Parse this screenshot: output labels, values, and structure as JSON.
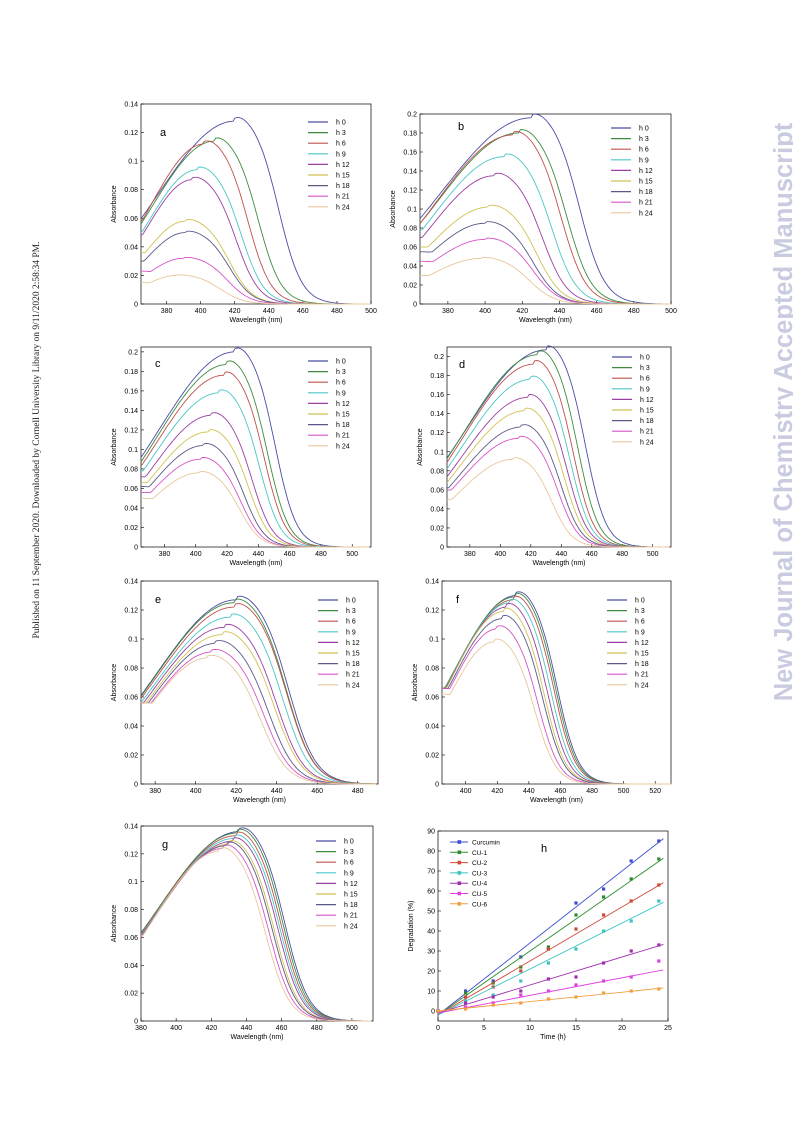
{
  "side_note_left": "Published on 11 September 2020. Downloaded by Cornell University Library on 9/11/2020 2:58:34 PM.",
  "side_note_right": "New Journal of Chemistry Accepted Manuscript",
  "colors": {
    "h0": "#4b4ea6",
    "h3": "#3e8b3e",
    "h6": "#c0504d",
    "h9": "#4bc6c6",
    "h12": "#9b3fa3",
    "h15": "#d0c253",
    "h18": "#5a5a8a",
    "h21": "#d655c8",
    "h24": "#e8c79b"
  },
  "chart_data": [
    {
      "panel": "a",
      "type": "line",
      "xlabel": "Wavelength (nm)",
      "ylabel": "Absorbance",
      "xlim": [
        365,
        500
      ],
      "ylim": [
        0,
        0.14
      ],
      "xticks": [
        "380",
        "400",
        "420",
        "440",
        "460",
        "480",
        "500"
      ],
      "yticks": [
        "0",
        "0.02",
        "0.04",
        "0.06",
        "0.08",
        "0.1",
        "0.12",
        "0.14"
      ],
      "legend_position": "top-right",
      "series": [
        {
          "name": "h 0",
          "peak": 420,
          "peak_value": 0.128,
          "start_value": 0.045
        },
        {
          "name": "h 3",
          "peak": 408,
          "peak_value": 0.114,
          "start_value": 0.055
        },
        {
          "name": "h 6",
          "peak": 402,
          "peak_value": 0.112,
          "start_value": 0.058
        },
        {
          "name": "h 9",
          "peak": 398,
          "peak_value": 0.094,
          "start_value": 0.05
        },
        {
          "name": "h 12",
          "peak": 395,
          "peak_value": 0.087,
          "start_value": 0.048
        },
        {
          "name": "h 15",
          "peak": 391,
          "peak_value": 0.058,
          "start_value": 0.036
        },
        {
          "name": "h 18",
          "peak": 391,
          "peak_value": 0.05,
          "start_value": 0.03
        },
        {
          "name": "h 21",
          "peak": 390,
          "peak_value": 0.032,
          "start_value": 0.023
        },
        {
          "name": "h 24",
          "peak": 386,
          "peak_value": 0.02,
          "start_value": 0.015
        }
      ]
    },
    {
      "panel": "b",
      "type": "line",
      "xlabel": "Wavelength (nm)",
      "ylabel": "Absorbance",
      "xlim": [
        365,
        500
      ],
      "ylim": [
        0,
        0.2
      ],
      "xticks": [
        "380",
        "400",
        "420",
        "440",
        "460",
        "480",
        "500"
      ],
      "yticks": [
        "0",
        "0.02",
        "0.04",
        "0.06",
        "0.08",
        "0.1",
        "0.12",
        "0.14",
        "0.16",
        "0.18",
        "0.2"
      ],
      "legend_position": "top-right",
      "series": [
        {
          "name": "h 0",
          "peak": 425,
          "peak_value": 0.196,
          "start_value": 0.08
        },
        {
          "name": "h 3",
          "peak": 418,
          "peak_value": 0.18,
          "start_value": 0.085
        },
        {
          "name": "h 6",
          "peak": 415,
          "peak_value": 0.178,
          "start_value": 0.082
        },
        {
          "name": "h 9",
          "peak": 410,
          "peak_value": 0.155,
          "start_value": 0.078
        },
        {
          "name": "h 12",
          "peak": 405,
          "peak_value": 0.135,
          "start_value": 0.07
        },
        {
          "name": "h 15",
          "peak": 402,
          "peak_value": 0.102,
          "start_value": 0.06
        },
        {
          "name": "h 18",
          "peak": 400,
          "peak_value": 0.085,
          "start_value": 0.055
        },
        {
          "name": "h 21",
          "peak": 400,
          "peak_value": 0.068,
          "start_value": 0.045
        },
        {
          "name": "h 24",
          "peak": 398,
          "peak_value": 0.048,
          "start_value": 0.03
        }
      ]
    },
    {
      "panel": "c",
      "type": "line",
      "xlabel": "Wavelength (nm)",
      "ylabel": "Absorbance",
      "xlim": [
        365,
        512
      ],
      "ylim": [
        0,
        0.205
      ],
      "xticks": [
        "380",
        "400",
        "420",
        "440",
        "460",
        "480",
        "500"
      ],
      "yticks": [
        "0",
        "0.02",
        "0.04",
        "0.06",
        "0.08",
        "0.1",
        "0.12",
        "0.14",
        "0.16",
        "0.18",
        "0.2"
      ],
      "legend_position": "top-right",
      "series": [
        {
          "name": "h 0",
          "peak": 425,
          "peak_value": 0.2,
          "start_value": 0.087
        },
        {
          "name": "h 3",
          "peak": 420,
          "peak_value": 0.187,
          "start_value": 0.085
        },
        {
          "name": "h 6",
          "peak": 418,
          "peak_value": 0.176,
          "start_value": 0.083
        },
        {
          "name": "h 9",
          "peak": 415,
          "peak_value": 0.158,
          "start_value": 0.078
        },
        {
          "name": "h 12",
          "peak": 410,
          "peak_value": 0.135,
          "start_value": 0.072
        },
        {
          "name": "h 15",
          "peak": 408,
          "peak_value": 0.118,
          "start_value": 0.066
        },
        {
          "name": "h 18",
          "peak": 405,
          "peak_value": 0.104,
          "start_value": 0.062
        },
        {
          "name": "h 21",
          "peak": 403,
          "peak_value": 0.09,
          "start_value": 0.056
        },
        {
          "name": "h 24",
          "peak": 402,
          "peak_value": 0.076,
          "start_value": 0.05
        }
      ]
    },
    {
      "panel": "d",
      "type": "line",
      "xlabel": "Wavelength (nm)",
      "ylabel": "Absorbance",
      "xlim": [
        365,
        512
      ],
      "ylim": [
        0,
        0.21
      ],
      "xticks": [
        "380",
        "400",
        "420",
        "440",
        "460",
        "480",
        "500"
      ],
      "yticks": [
        "0",
        "0.02",
        "0.04",
        "0.06",
        "0.08",
        "0.1",
        "0.12",
        "0.14",
        "0.16",
        "0.18",
        "0.2"
      ],
      "legend_position": "top-right",
      "series": [
        {
          "name": "h 0",
          "peak": 430,
          "peak_value": 0.207,
          "start_value": 0.07
        },
        {
          "name": "h 3",
          "peak": 425,
          "peak_value": 0.202,
          "start_value": 0.072
        },
        {
          "name": "h 6",
          "peak": 422,
          "peak_value": 0.192,
          "start_value": 0.07
        },
        {
          "name": "h 9",
          "peak": 420,
          "peak_value": 0.176,
          "start_value": 0.068
        },
        {
          "name": "h 12",
          "peak": 418,
          "peak_value": 0.157,
          "start_value": 0.066
        },
        {
          "name": "h 15",
          "peak": 416,
          "peak_value": 0.143,
          "start_value": 0.064
        },
        {
          "name": "h 18",
          "peak": 414,
          "peak_value": 0.126,
          "start_value": 0.062
        },
        {
          "name": "h 21",
          "peak": 412,
          "peak_value": 0.114,
          "start_value": 0.06
        },
        {
          "name": "h 24",
          "peak": 408,
          "peak_value": 0.092,
          "start_value": 0.05
        }
      ]
    },
    {
      "panel": "e",
      "type": "line",
      "xlabel": "Wavelength (nm)",
      "ylabel": "Absorbance",
      "xlim": [
        373,
        490
      ],
      "ylim": [
        0,
        0.14
      ],
      "xticks": [
        "380",
        "400",
        "420",
        "440",
        "460",
        "480"
      ],
      "yticks": [
        "0",
        "0.02",
        "0.04",
        "0.06",
        "0.08",
        "0.1",
        "0.12",
        "0.14"
      ],
      "legend_position": "top-right",
      "series": [
        {
          "name": "h 0",
          "peak": 420,
          "peak_value": 0.127,
          "start_value": 0.056
        },
        {
          "name": "h 3",
          "peak": 419,
          "peak_value": 0.125,
          "start_value": 0.056
        },
        {
          "name": "h 6",
          "peak": 419,
          "peak_value": 0.122,
          "start_value": 0.056
        },
        {
          "name": "h 9",
          "peak": 417,
          "peak_value": 0.115,
          "start_value": 0.056
        },
        {
          "name": "h 12",
          "peak": 414,
          "peak_value": 0.108,
          "start_value": 0.056
        },
        {
          "name": "h 15",
          "peak": 413,
          "peak_value": 0.103,
          "start_value": 0.056
        },
        {
          "name": "h 18",
          "peak": 410,
          "peak_value": 0.097,
          "start_value": 0.056
        },
        {
          "name": "h 21",
          "peak": 408,
          "peak_value": 0.091,
          "start_value": 0.056
        },
        {
          "name": "h 24",
          "peak": 406,
          "peak_value": 0.087,
          "start_value": 0.056
        }
      ]
    },
    {
      "panel": "f",
      "type": "line",
      "xlabel": "Wavelength (nm)",
      "ylabel": "Absorbance",
      "xlim": [
        385,
        530
      ],
      "ylim": [
        0,
        0.14
      ],
      "xticks": [
        "400",
        "420",
        "440",
        "460",
        "480",
        "500",
        "520"
      ],
      "yticks": [
        "0",
        "0.02",
        "0.04",
        "0.06",
        "0.08",
        "0.1",
        "0.12",
        "0.14"
      ],
      "legend_position": "top-right",
      "series": [
        {
          "name": "h 0",
          "peak": 432,
          "peak_value": 0.13,
          "start_value": 0.066
        },
        {
          "name": "h 3",
          "peak": 431,
          "peak_value": 0.129,
          "start_value": 0.066
        },
        {
          "name": "h 6",
          "peak": 430,
          "peak_value": 0.127,
          "start_value": 0.066
        },
        {
          "name": "h 9",
          "peak": 428,
          "peak_value": 0.125,
          "start_value": 0.066
        },
        {
          "name": "h 12",
          "peak": 426,
          "peak_value": 0.122,
          "start_value": 0.066
        },
        {
          "name": "h 15",
          "peak": 424,
          "peak_value": 0.119,
          "start_value": 0.066
        },
        {
          "name": "h 18",
          "peak": 423,
          "peak_value": 0.114,
          "start_value": 0.066
        },
        {
          "name": "h 21",
          "peak": 420,
          "peak_value": 0.107,
          "start_value": 0.066
        },
        {
          "name": "h 24",
          "peak": 418,
          "peak_value": 0.098,
          "start_value": 0.062
        }
      ]
    },
    {
      "panel": "g",
      "type": "line",
      "xlabel": "Wavelength (nm)",
      "ylabel": "Absorbance",
      "xlim": [
        380,
        512
      ],
      "ylim": [
        0,
        0.14
      ],
      "xticks": [
        "380",
        "400",
        "420",
        "440",
        "460",
        "480",
        "500"
      ],
      "yticks": [
        "0",
        "0.02",
        "0.04",
        "0.06",
        "0.08",
        "0.1",
        "0.12",
        "0.14"
      ],
      "legend_position": "top-right",
      "series": [
        {
          "name": "h 0",
          "peak": 436,
          "peak_value": 0.136,
          "start_value": 0.055
        },
        {
          "name": "h 3",
          "peak": 435,
          "peak_value": 0.135,
          "start_value": 0.055
        },
        {
          "name": "h 6",
          "peak": 434,
          "peak_value": 0.133,
          "start_value": 0.056
        },
        {
          "name": "h 9",
          "peak": 433,
          "peak_value": 0.131,
          "start_value": 0.056
        },
        {
          "name": "h 12",
          "peak": 432,
          "peak_value": 0.129,
          "start_value": 0.057
        },
        {
          "name": "h 15",
          "peak": 430,
          "peak_value": 0.127,
          "start_value": 0.058
        },
        {
          "name": "h 18",
          "peak": 429,
          "peak_value": 0.126,
          "start_value": 0.059
        },
        {
          "name": "h 21",
          "peak": 427,
          "peak_value": 0.124,
          "start_value": 0.06
        },
        {
          "name": "h 24",
          "peak": 425,
          "peak_value": 0.122,
          "start_value": 0.061
        }
      ]
    },
    {
      "panel": "h",
      "type": "scatter",
      "xlabel": "Time (h)",
      "ylabel": "Degradation (%)",
      "xlim": [
        0,
        25
      ],
      "ylim": [
        -5,
        90
      ],
      "xticks": [
        "0",
        "5",
        "10",
        "15",
        "20",
        "25"
      ],
      "yticks": [
        "0",
        "10",
        "20",
        "30",
        "40",
        "50",
        "60",
        "70",
        "80",
        "90"
      ],
      "legend_position": "top-left",
      "x": [
        0,
        3,
        6,
        9,
        12,
        15,
        18,
        21,
        24
      ],
      "series": [
        {
          "name": "Curcumin",
          "color": "#3d4fd0",
          "values": [
            0,
            10,
            15,
            27,
            31,
            54,
            61,
            75,
            85
          ],
          "fit": [
            -2,
            3.6
          ]
        },
        {
          "name": "CU-1",
          "color": "#2e8b2e",
          "values": [
            0,
            9,
            14,
            22,
            32,
            48,
            57,
            66,
            76
          ],
          "fit": [
            -2,
            3.2
          ]
        },
        {
          "name": "CU-2",
          "color": "#d04a3a",
          "values": [
            0,
            7,
            12,
            20,
            31,
            41,
            48,
            55,
            63
          ],
          "fit": [
            -2,
            2.7
          ]
        },
        {
          "name": "CU-3",
          "color": "#3cc4c0",
          "values": [
            0,
            5,
            8,
            15,
            24,
            31,
            40,
            45,
            55
          ],
          "fit": [
            -2,
            2.3
          ]
        },
        {
          "name": "CU-4",
          "color": "#a030b0",
          "values": [
            0,
            4,
            7,
            10,
            16,
            17,
            24,
            30,
            33
          ],
          "fit": [
            -1,
            1.4
          ]
        },
        {
          "name": "CU-5",
          "color": "#e040e0",
          "values": [
            0,
            2,
            4,
            8,
            10,
            13,
            15,
            17,
            25
          ],
          "fit": [
            -1,
            0.88
          ]
        },
        {
          "name": "CU-6",
          "color": "#f0a040",
          "values": [
            0,
            1,
            3,
            4,
            6,
            7,
            9,
            10,
            11
          ],
          "fit": [
            0,
            0.47
          ]
        }
      ]
    }
  ]
}
